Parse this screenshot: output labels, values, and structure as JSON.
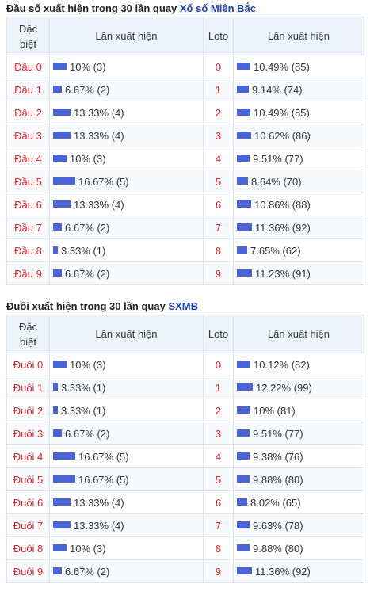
{
  "colors": {
    "bar": "#4a63d7",
    "key": "#d9262c",
    "header_bg": "#eef3fb",
    "link": "#2244aa"
  },
  "section1": {
    "title": "Đầu số xuất hiện trong 30 lần quay",
    "title_link": "Xổ số Miền Bắc",
    "headers": {
      "special": "Đặc biệt",
      "special_line1": "Đặc",
      "special_line2": "biệt",
      "count": "Lần xuất hiện",
      "loto": "Loto",
      "loto_count": "Lần xuất hiện"
    },
    "rows": [
      {
        "label": "Đầu 0",
        "text": "10% (3)",
        "pct": 10,
        "loto": "0",
        "loto_text": "10.49% (85)",
        "loto_pct": 10.49
      },
      {
        "label": "Đầu 1",
        "text": "6.67% (2)",
        "pct": 6.67,
        "loto": "1",
        "loto_text": "9.14% (74)",
        "loto_pct": 9.14
      },
      {
        "label": "Đầu 2",
        "text": "13.33% (4)",
        "pct": 13.33,
        "loto": "2",
        "loto_text": "10.49% (85)",
        "loto_pct": 10.49
      },
      {
        "label": "Đầu 3",
        "text": "13.33% (4)",
        "pct": 13.33,
        "loto": "3",
        "loto_text": "10.62% (86)",
        "loto_pct": 10.62
      },
      {
        "label": "Đầu 4",
        "text": "10% (3)",
        "pct": 10,
        "loto": "4",
        "loto_text": "9.51% (77)",
        "loto_pct": 9.51
      },
      {
        "label": "Đầu 5",
        "text": "16.67% (5)",
        "pct": 16.67,
        "loto": "5",
        "loto_text": "8.64% (70)",
        "loto_pct": 8.64
      },
      {
        "label": "Đầu 6",
        "text": "13.33% (4)",
        "pct": 13.33,
        "loto": "6",
        "loto_text": "10.86% (88)",
        "loto_pct": 10.86
      },
      {
        "label": "Đầu 7",
        "text": "6.67% (2)",
        "pct": 6.67,
        "loto": "7",
        "loto_text": "11.36% (92)",
        "loto_pct": 11.36
      },
      {
        "label": "Đầu 8",
        "text": "3.33% (1)",
        "pct": 3.33,
        "loto": "8",
        "loto_text": "7.65% (62)",
        "loto_pct": 7.65
      },
      {
        "label": "Đầu 9",
        "text": "6.67% (2)",
        "pct": 6.67,
        "loto": "9",
        "loto_text": "11.23% (91)",
        "loto_pct": 11.23
      }
    ]
  },
  "section2": {
    "title": "Đuôi xuất hiện trong 30 lần quay",
    "title_link": "SXMB",
    "headers": {
      "special": "Đặc biệt",
      "special_line1": "Đặc",
      "special_line2": "biệt",
      "count": "Lần xuất hiện",
      "loto": "Loto",
      "loto_count": "Lần xuất hiện"
    },
    "rows": [
      {
        "label": "Đuôi 0",
        "text": "10% (3)",
        "pct": 10,
        "loto": "0",
        "loto_text": "10.12% (82)",
        "loto_pct": 10.12
      },
      {
        "label": "Đuôi 1",
        "text": "3.33% (1)",
        "pct": 3.33,
        "loto": "1",
        "loto_text": "12.22% (99)",
        "loto_pct": 12.22
      },
      {
        "label": "Đuôi 2",
        "text": "3.33% (1)",
        "pct": 3.33,
        "loto": "2",
        "loto_text": "10% (81)",
        "loto_pct": 10
      },
      {
        "label": "Đuôi 3",
        "text": "6.67% (2)",
        "pct": 6.67,
        "loto": "3",
        "loto_text": "9.51% (77)",
        "loto_pct": 9.51
      },
      {
        "label": "Đuôi 4",
        "text": "16.67% (5)",
        "pct": 16.67,
        "loto": "4",
        "loto_text": "9.38% (76)",
        "loto_pct": 9.38
      },
      {
        "label": "Đuôi 5",
        "text": "16.67% (5)",
        "pct": 16.67,
        "loto": "5",
        "loto_text": "9.88% (80)",
        "loto_pct": 9.88
      },
      {
        "label": "Đuôi 6",
        "text": "13.33% (4)",
        "pct": 13.33,
        "loto": "6",
        "loto_text": "8.02% (65)",
        "loto_pct": 8.02
      },
      {
        "label": "Đuôi 7",
        "text": "13.33% (4)",
        "pct": 13.33,
        "loto": "7",
        "loto_text": "9.63% (78)",
        "loto_pct": 9.63
      },
      {
        "label": "Đuôi 8",
        "text": "10% (3)",
        "pct": 10,
        "loto": "8",
        "loto_text": "9.88% (80)",
        "loto_pct": 9.88
      },
      {
        "label": "Đuôi 9",
        "text": "6.67% (2)",
        "pct": 6.67,
        "loto": "9",
        "loto_text": "11.36% (92)",
        "loto_pct": 11.36
      }
    ]
  }
}
